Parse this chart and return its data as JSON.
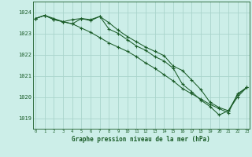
{
  "title": "Graphe pression niveau de la mer (hPa)",
  "bg_color": "#cceee8",
  "grid_color": "#aad4cc",
  "line_color": "#1a5c28",
  "xlim": [
    -0.3,
    23.3
  ],
  "ylim": [
    1018.5,
    1024.5
  ],
  "yticks": [
    1019,
    1020,
    1021,
    1022,
    1023,
    1024
  ],
  "xticks": [
    0,
    1,
    2,
    3,
    4,
    5,
    6,
    7,
    8,
    9,
    10,
    11,
    12,
    13,
    14,
    15,
    16,
    17,
    18,
    19,
    20,
    21,
    22,
    23
  ],
  "series": [
    [
      1023.7,
      1023.85,
      1023.7,
      1023.55,
      1023.65,
      1023.7,
      1023.65,
      1023.8,
      1023.5,
      1023.15,
      1022.85,
      1022.6,
      1022.35,
      1022.15,
      1021.95,
      1021.45,
      1021.25,
      1020.8,
      1020.35,
      1019.75,
      1019.5,
      1019.35,
      1020.1,
      1020.45
    ],
    [
      1023.7,
      1023.85,
      1023.65,
      1023.55,
      1023.45,
      1023.25,
      1023.05,
      1022.8,
      1022.55,
      1022.35,
      1022.15,
      1021.9,
      1021.6,
      1021.35,
      1021.05,
      1020.75,
      1020.4,
      1020.15,
      1019.9,
      1019.65,
      1019.45,
      1019.25,
      1020.15,
      1020.45
    ],
    [
      1023.7,
      1023.85,
      1023.65,
      1023.55,
      1023.45,
      1023.7,
      1023.6,
      1023.8,
      1023.2,
      1023.0,
      1022.7,
      1022.4,
      1022.2,
      1021.9,
      1021.7,
      1021.35,
      1020.6,
      1020.25,
      1019.85,
      1019.55,
      1019.15,
      1019.35,
      1020.0,
      1020.45
    ]
  ]
}
